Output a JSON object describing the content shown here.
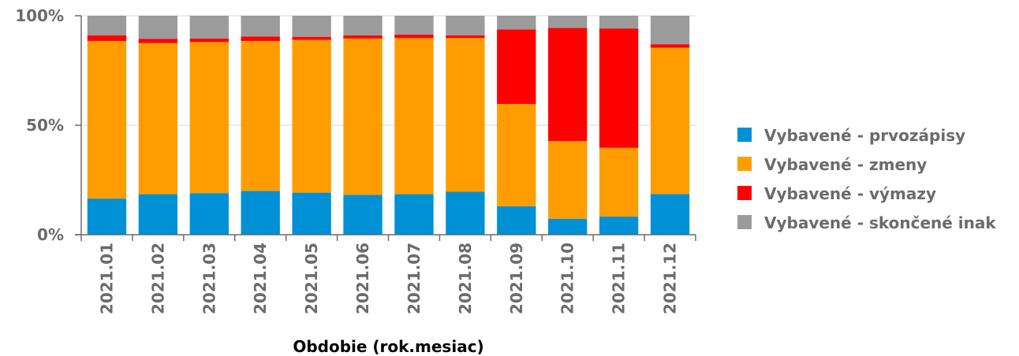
{
  "chart_data": {
    "type": "bar",
    "stacked": true,
    "percent": true,
    "xlabel": "Obdobie (rok.mesiac)",
    "ylabel": "",
    "ylim": [
      0,
      100
    ],
    "yticks": [
      "0%",
      "50%",
      "100%"
    ],
    "grid": true,
    "legend_position": "right",
    "categories": [
      "2021.01",
      "2021.02",
      "2021.03",
      "2021.04",
      "2021.05",
      "2021.06",
      "2021.07",
      "2021.08",
      "2021.09",
      "2021.10",
      "2021.11",
      "2021.12"
    ],
    "series": [
      {
        "name": "Vybavené - prvozápisy",
        "color": "#0090d6",
        "values": [
          16.5,
          18.5,
          19.0,
          20.0,
          19.2,
          18.2,
          18.5,
          19.6,
          13.0,
          7.3,
          8.3,
          18.6
        ]
      },
      {
        "name": "Vybavené - zmeny",
        "color": "#ff9d00",
        "values": [
          72.0,
          69.0,
          69.0,
          68.5,
          69.8,
          71.4,
          71.3,
          70.2,
          46.7,
          35.5,
          31.4,
          66.8
        ]
      },
      {
        "name": "Vybavené - výmazy",
        "color": "#ff0000",
        "values": [
          2.6,
          2.0,
          1.6,
          2.0,
          1.4,
          1.4,
          1.6,
          1.2,
          34.0,
          51.7,
          54.5,
          1.6
        ]
      },
      {
        "name": "Vybavené - skončené inak",
        "color": "#9b9b9b",
        "values": [
          8.9,
          10.5,
          10.4,
          9.5,
          9.6,
          9.0,
          8.6,
          9.0,
          6.3,
          5.5,
          5.8,
          13.0
        ]
      }
    ]
  }
}
